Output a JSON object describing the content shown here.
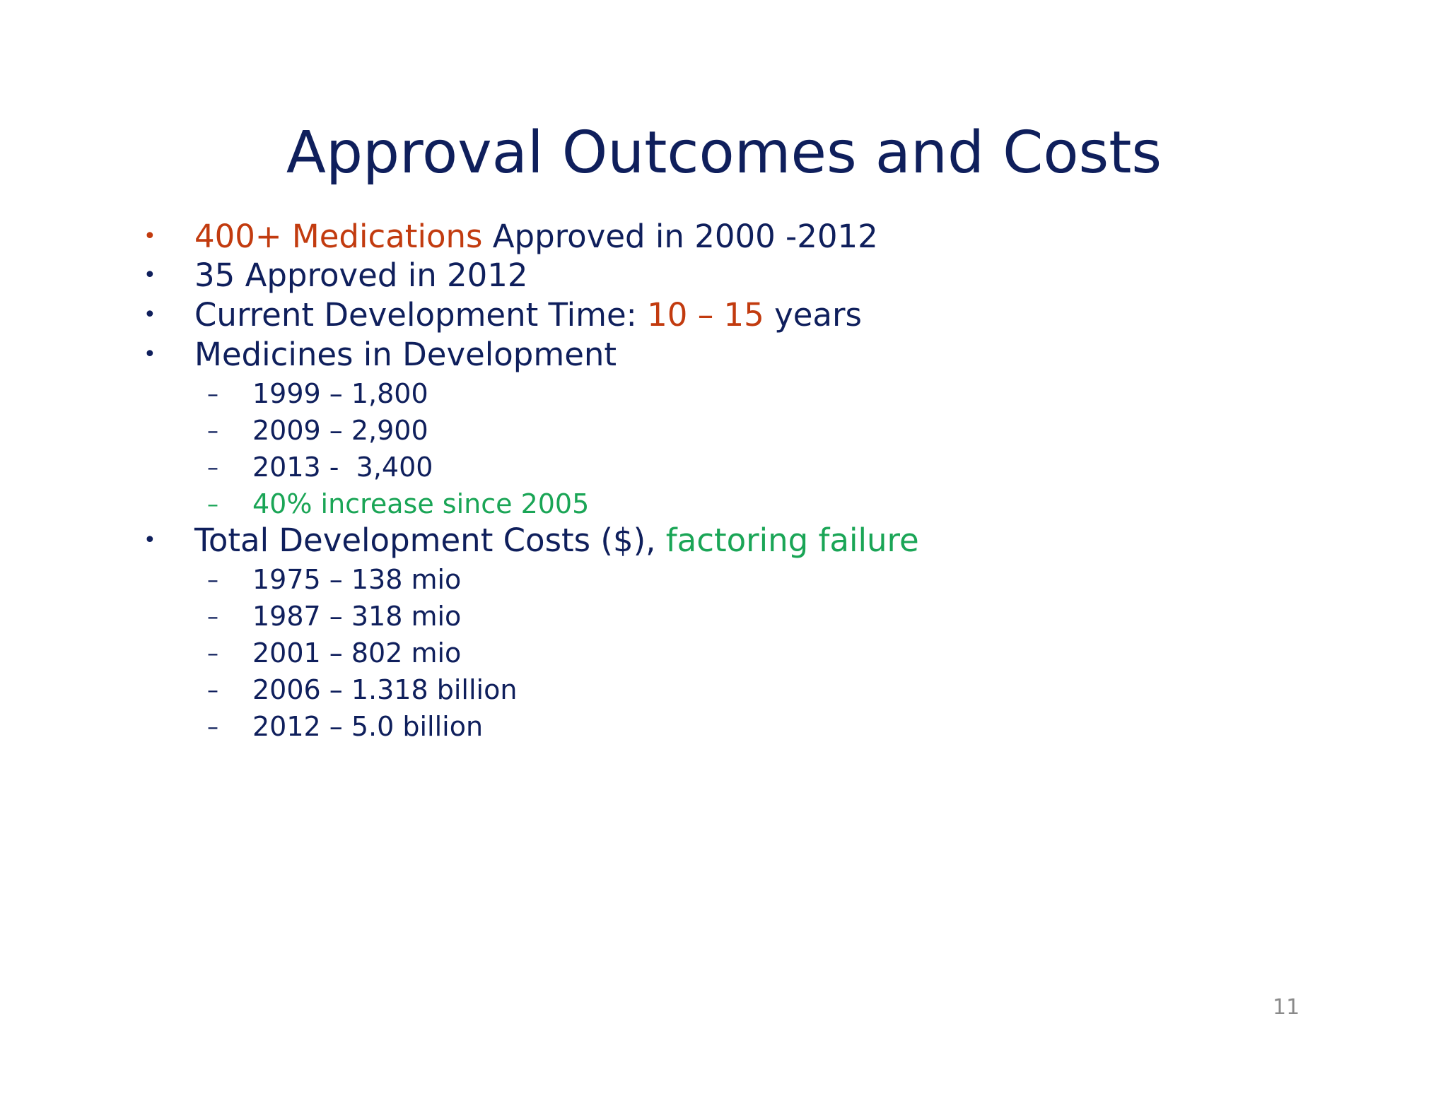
{
  "slide": {
    "title": "Approval Outcomes and Costs",
    "page_number": "11",
    "bullet_marker": "•",
    "sub_marker": "–",
    "bullets": [
      {
        "parts": [
          "400+ Medications",
          " Approved in 2000 -2012"
        ]
      },
      {
        "parts": [
          "35 Approved in 2012"
        ]
      },
      {
        "parts": [
          "Current Development Time: ",
          "10 – 15",
          " years"
        ]
      },
      {
        "parts": [
          "Medicines in Development"
        ],
        "subitems": [
          "1999 – 1,800",
          "2009 – 2,900",
          "2013 -  3,400",
          "40% increase since 2005"
        ]
      },
      {
        "parts": [
          "Total Development Costs ($), ",
          "factoring failure"
        ],
        "subitems": [
          "1975 – 138 mio",
          "1987 – 318 mio",
          "2001 – 802 mio",
          "2006 – 1.318 billion",
          "2012 – 5.0 billion"
        ]
      }
    ]
  },
  "colors": {
    "primary_text": "#0f1f5c",
    "accent_orange": "#c23b0f",
    "accent_green": "#1aa556",
    "page_number": "#8a8a8a"
  }
}
